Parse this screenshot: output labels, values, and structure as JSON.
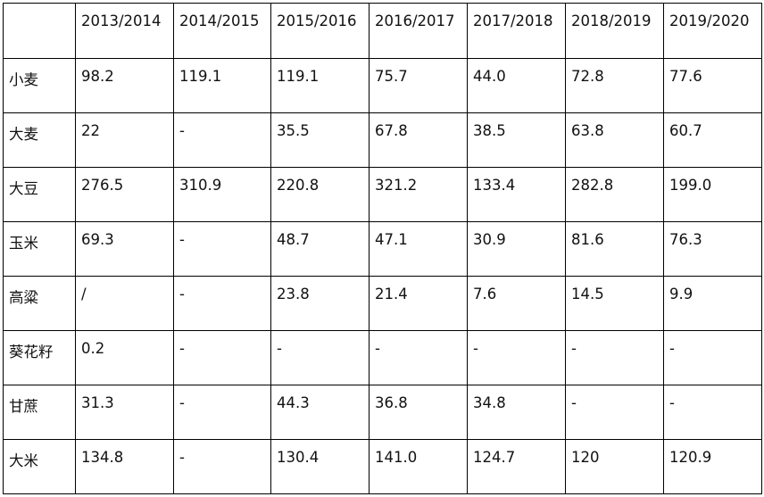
{
  "table": {
    "corner": "",
    "columns": [
      "2013/2014",
      "2014/2015",
      "2015/2016",
      "2016/2017",
      "2017/2018",
      "2018/2019",
      "2019/2020"
    ],
    "rows": [
      {
        "label": "小麦",
        "cells": [
          "98.2",
          "119.1",
          "119.1",
          "75.7",
          "44.0",
          "72.8",
          "77.6"
        ]
      },
      {
        "label": "大麦",
        "cells": [
          "22",
          "-",
          "35.5",
          "67.8",
          "38.5",
          "63.8",
          "60.7"
        ]
      },
      {
        "label": "大豆",
        "cells": [
          "276.5",
          "310.9",
          "220.8",
          "321.2",
          "133.4",
          "282.8",
          "199.0"
        ]
      },
      {
        "label": "玉米",
        "cells": [
          "69.3",
          "-",
          "48.7",
          "47.1",
          "30.9",
          "81.6",
          "76.3"
        ]
      },
      {
        "label": "高粱",
        "cells": [
          "/",
          "-",
          "23.8",
          "21.4",
          "7.6",
          "14.5",
          "9.9"
        ]
      },
      {
        "label": "葵花籽",
        "cells": [
          "0.2",
          "-",
          "-",
          "-",
          "-",
          "-",
          "-"
        ]
      },
      {
        "label": "甘蔗",
        "cells": [
          "31.3",
          "-",
          "44.3",
          "36.8",
          "34.8",
          "-",
          "-"
        ]
      },
      {
        "label": "大米",
        "cells": [
          "134.8",
          "-",
          "130.4",
          "141.0",
          "124.7",
          "120",
          "120.9"
        ]
      }
    ]
  }
}
